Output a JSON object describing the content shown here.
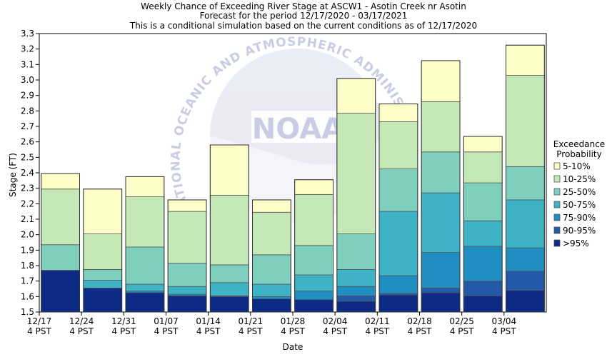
{
  "chart_data": {
    "type": "bar",
    "stacked": true,
    "title": "Weekly Chance of Exceeding River Stage at ASCW1 - Asotin Creek nr Asotin",
    "subtitle_1": "Forecast for the period 12/17/2020 - 03/17/2021",
    "subtitle_2": "This is a conditional simulation based on the current conditions as of 12/17/2020",
    "xlabel": "Date",
    "ylabel": "Stage (FT)",
    "ylim": [
      1.5,
      3.3
    ],
    "yticks": [
      "1.5",
      "1.6",
      "1.7",
      "1.8",
      "1.9",
      "2.0",
      "2.1",
      "2.2",
      "2.3",
      "2.4",
      "2.5",
      "2.6",
      "2.7",
      "2.8",
      "2.9",
      "3.0",
      "3.1",
      "3.2",
      "3.3"
    ],
    "categories": [
      {
        "date": "12/17",
        "time": "4 PST"
      },
      {
        "date": "12/24",
        "time": "4 PST"
      },
      {
        "date": "12/31",
        "time": "4 PST"
      },
      {
        "date": "01/07",
        "time": "4 PST"
      },
      {
        "date": "01/14",
        "time": "4 PST"
      },
      {
        "date": "01/21",
        "time": "4 PST"
      },
      {
        "date": "01/28",
        "time": "4 PST"
      },
      {
        "date": "02/04",
        "time": "4 PST"
      },
      {
        "date": "02/11",
        "time": "4 PST"
      },
      {
        "date": "02/18",
        "time": "4 PST"
      },
      {
        "date": "02/25",
        "time": "4 PST"
      },
      {
        "date": "03/04",
        "time": "4 PST"
      }
    ],
    "boundaries": [
      [
        1.5,
        1.77,
        1.77,
        1.77,
        1.935,
        2.295,
        2.395
      ],
      [
        1.5,
        1.655,
        1.655,
        1.705,
        1.775,
        2.005,
        2.295
      ],
      [
        1.5,
        1.625,
        1.635,
        1.68,
        1.92,
        2.245,
        2.375
      ],
      [
        1.5,
        1.605,
        1.615,
        1.665,
        1.815,
        2.15,
        2.225
      ],
      [
        1.5,
        1.6,
        1.605,
        1.69,
        1.805,
        2.255,
        2.58
      ],
      [
        1.5,
        1.585,
        1.6,
        1.68,
        1.87,
        2.145,
        2.225
      ],
      [
        1.5,
        1.58,
        1.58,
        1.635,
        1.74,
        1.93,
        2.26,
        2.355
      ],
      [
        1.5,
        1.57,
        1.605,
        1.665,
        1.775,
        2.005,
        2.785,
        3.01
      ],
      [
        1.5,
        1.61,
        1.62,
        1.735,
        2.15,
        2.425,
        2.73,
        2.845
      ],
      [
        1.5,
        1.625,
        1.655,
        1.885,
        2.27,
        2.535,
        2.86,
        3.125
      ],
      [
        1.5,
        1.605,
        1.7,
        1.925,
        2.09,
        2.335,
        2.535,
        2.635
      ],
      [
        1.5,
        1.64,
        1.765,
        1.915,
        2.225,
        2.44,
        3.03,
        3.225
      ]
    ],
    "series": [
      {
        "name": ">95%",
        "color": "#0d2a85"
      },
      {
        "name": "90-95%",
        "color": "#2259a8"
      },
      {
        "name": "75-90%",
        "color": "#1e8fc0"
      },
      {
        "name": "50-75%",
        "color": "#3fb3c6"
      },
      {
        "name": "25-50%",
        "color": "#7ecfbd"
      },
      {
        "name": "10-25%",
        "color": "#c5e8b7"
      },
      {
        "name": "5-10%",
        "color": "#fefec8"
      }
    ],
    "legend": {
      "title_line_1": "Exceedance",
      "title_line_2": "Probability",
      "items": [
        "5-10%",
        "10-25%",
        "25-50%",
        "50-75%",
        "75-90%",
        "90-95%",
        ">95%"
      ],
      "colors": [
        "#fefec8",
        "#c5e8b7",
        "#7ecfbd",
        "#3fb3c6",
        "#1e8fc0",
        "#2259a8",
        "#0d2a85"
      ]
    },
    "watermark_text": "NATIONAL OCEANIC AND ATMOSPHERIC ADMINISTRATION",
    "watermark_logo": "NOAA"
  }
}
